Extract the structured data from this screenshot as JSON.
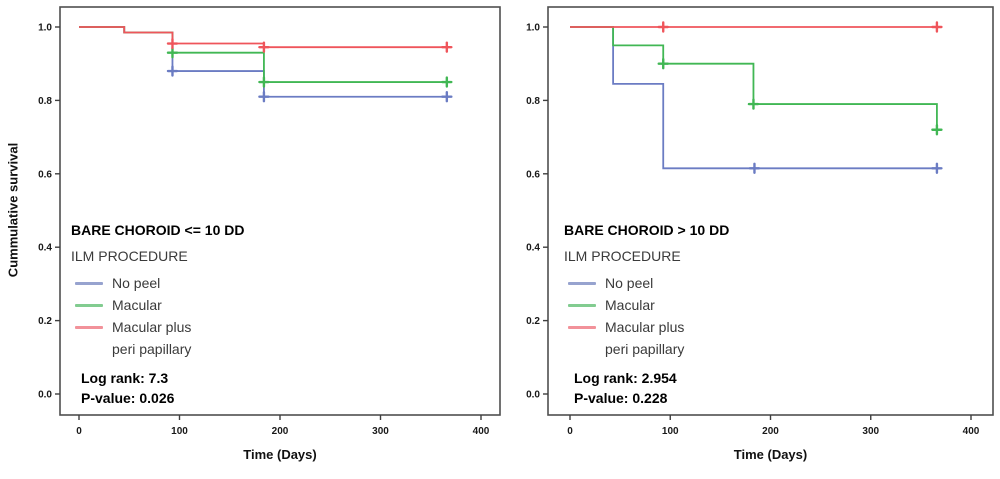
{
  "figure": {
    "ylabel": "Cummulative survival",
    "background": "#ffffff"
  },
  "legend": {
    "entries": [
      {
        "label": "No peel",
        "swatch_color": "#97a3cf"
      },
      {
        "label": "Macular",
        "swatch_color": "#82cc90"
      },
      {
        "label": "Macular plus",
        "label_line2": "peri papillary",
        "swatch_color": "#f2929a"
      }
    ]
  },
  "chart_data": [
    {
      "type": "line",
      "subtype": "kaplan-meier-step",
      "title": "BARE CHOROID <= 10 DD",
      "legend_heading": "ILM PROCEDURE",
      "xlabel": "Time (Days)",
      "ylabel": "Cummulative survival",
      "xlim": [
        -20,
        420
      ],
      "ylim": [
        -0.06,
        1.05
      ],
      "grid": false,
      "legend_position": "lower left annotation",
      "x_tick_labels": [
        "0",
        "100",
        "200",
        "300",
        "400"
      ],
      "y_tick_labels": [
        "0.0",
        "0.2",
        "0.4",
        "0.6",
        "0.8",
        "1.0"
      ],
      "stats": {
        "log_rank": "Log rank: 7.3",
        "p_value": "P-value: 0.026"
      },
      "series": [
        {
          "name": "No peel",
          "color": "#6b7cc3",
          "steps": [
            [
              0,
              1.0
            ],
            [
              45,
              0.985
            ],
            [
              93,
              0.88
            ],
            [
              184,
              0.81
            ]
          ],
          "end_time": 366,
          "censor_marks": [
            [
              93,
              0.88
            ],
            [
              184,
              0.81
            ],
            [
              366,
              0.81
            ]
          ]
        },
        {
          "name": "Macular",
          "color": "#41b754",
          "steps": [
            [
              0,
              1.0
            ],
            [
              45,
              0.985
            ],
            [
              93,
              0.93
            ],
            [
              184,
              0.85
            ]
          ],
          "end_time": 366,
          "censor_marks": [
            [
              93,
              0.93
            ],
            [
              184,
              0.85
            ],
            [
              366,
              0.85
            ]
          ]
        },
        {
          "name": "Macular plus peri papillary",
          "color": "#ef555b",
          "steps": [
            [
              0,
              1.0
            ],
            [
              45,
              0.985
            ],
            [
              93,
              0.955
            ],
            [
              184,
              0.945
            ]
          ],
          "end_time": 366,
          "censor_marks": [
            [
              93,
              0.955
            ],
            [
              184,
              0.945
            ],
            [
              366,
              0.945
            ]
          ]
        }
      ]
    },
    {
      "type": "line",
      "subtype": "kaplan-meier-step",
      "title": "BARE CHOROID > 10 DD",
      "legend_heading": "ILM PROCEDURE",
      "xlabel": "Time (Days)",
      "ylabel": "Cummulative survival",
      "xlim": [
        -20,
        420
      ],
      "ylim": [
        -0.06,
        1.05
      ],
      "grid": false,
      "legend_position": "lower left annotation",
      "x_tick_labels": [
        "0",
        "100",
        "200",
        "300",
        "400"
      ],
      "y_tick_labels": [
        "0.0",
        "0.2",
        "0.4",
        "0.6",
        "0.8",
        "1.0"
      ],
      "stats": {
        "log_rank": "Log rank: 2.954",
        "p_value": "P-value: 0.228"
      },
      "series": [
        {
          "name": "No peel",
          "color": "#6b7cc3",
          "steps": [
            [
              0,
              1.0
            ],
            [
              43,
              0.845
            ],
            [
              93,
              0.615
            ]
          ],
          "end_time": 366,
          "censor_marks": [
            [
              184,
              0.615
            ],
            [
              366,
              0.615
            ]
          ]
        },
        {
          "name": "Macular",
          "color": "#41b754",
          "steps": [
            [
              0,
              1.0
            ],
            [
              43,
              0.95
            ],
            [
              93,
              0.9
            ],
            [
              183,
              0.79
            ],
            [
              366,
              0.72
            ]
          ],
          "end_time": 366,
          "censor_marks": [
            [
              93,
              0.9
            ],
            [
              183,
              0.79
            ],
            [
              366,
              0.72
            ]
          ]
        },
        {
          "name": "Macular plus peri papillary",
          "color": "#ef555b",
          "steps": [
            [
              0,
              1.0
            ]
          ],
          "end_time": 366,
          "censor_marks": [
            [
              93,
              1.0
            ],
            [
              366,
              1.0
            ]
          ]
        }
      ]
    }
  ]
}
